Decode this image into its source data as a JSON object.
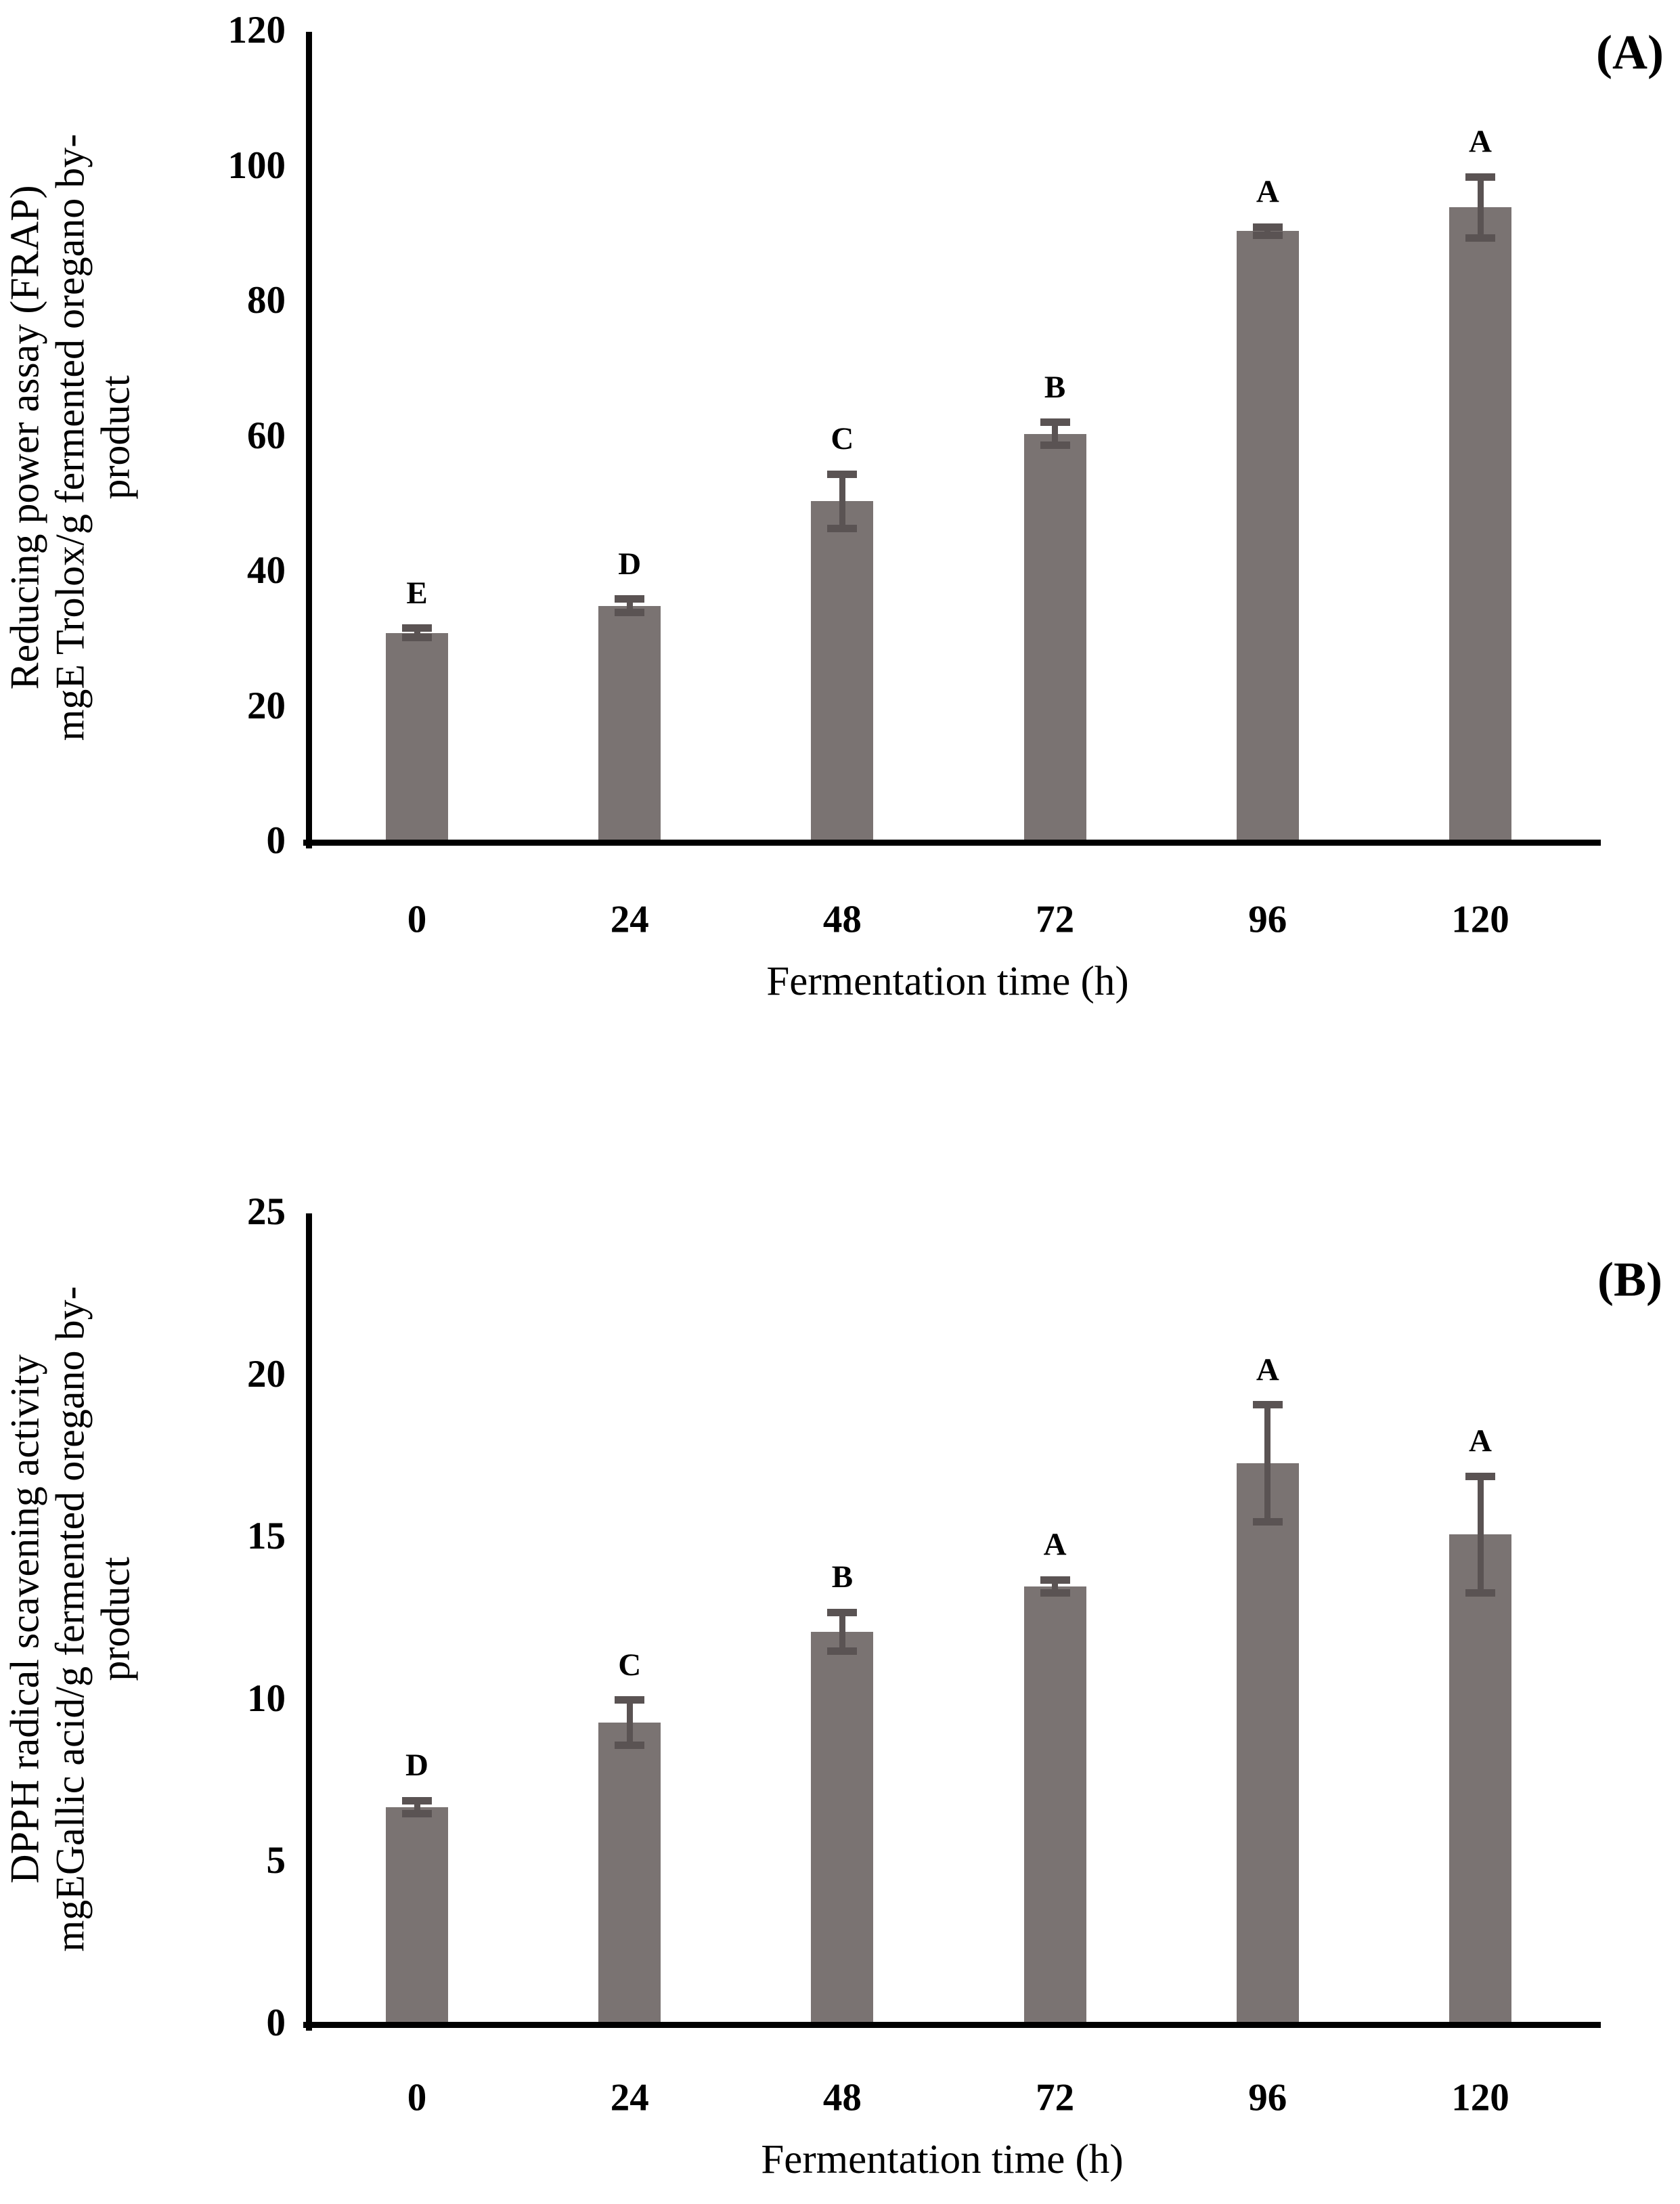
{
  "figure": {
    "description": "Two-panel bar chart of antioxidant activity of fermented oregano by-product over fermentation time",
    "background_color": "#ffffff",
    "text_color": "#000000"
  },
  "chart_data": [
    {
      "type": "bar",
      "panel_label": "(A)",
      "title": "",
      "categories": [
        "0",
        "24",
        "48",
        "72",
        "96",
        "120"
      ],
      "values": [
        31,
        35,
        50.5,
        60.5,
        90.5,
        94
      ],
      "errors": [
        0.7,
        1.0,
        4.0,
        1.7,
        0.6,
        4.5
      ],
      "sig_letters": [
        "E",
        "D",
        "C",
        "B",
        "A",
        "A"
      ],
      "xlabel": "Fermentation time (h)",
      "ylabel": "Reducing power assay (FRAP)\nmgE Trolox/g fermented oregano by-\nproduct",
      "ylim": [
        0,
        120
      ],
      "ytick_step": 20,
      "ytick_labels": [
        "0",
        "20",
        "40",
        "60",
        "80",
        "100",
        "120"
      ],
      "grid": false,
      "legend": "none",
      "bar_color": "#7a7372",
      "error_color": "#5a5353",
      "axis_color": "#000000"
    },
    {
      "type": "bar",
      "panel_label": "(B)",
      "title": "",
      "categories": [
        "0",
        "24",
        "48",
        "72",
        "96",
        "120"
      ],
      "values": [
        6.7,
        9.3,
        12.1,
        13.5,
        17.3,
        15.1
      ],
      "errors": [
        0.2,
        0.7,
        0.6,
        0.2,
        1.8,
        1.8
      ],
      "sig_letters": [
        "D",
        "C",
        "B",
        "A",
        "A",
        "A"
      ],
      "xlabel": "Fermentation time (h)",
      "ylabel": "DPPH radical scavening activity\nmgEGallic acid/g fermented oregano by-\nproduct",
      "ylim": [
        0,
        25
      ],
      "ytick_step": 5,
      "ytick_labels": [
        "0",
        "5",
        "10",
        "15",
        "20",
        "25"
      ],
      "grid": false,
      "legend": "none",
      "bar_color": "#7a7372",
      "error_color": "#5a5353",
      "axis_color": "#000000"
    }
  ]
}
